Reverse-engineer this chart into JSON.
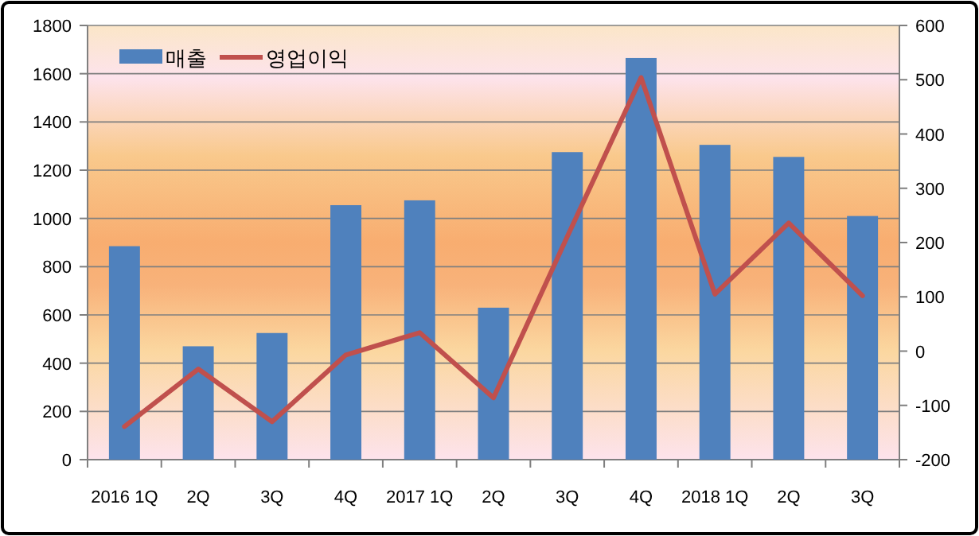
{
  "chart_data": {
    "type": "bar",
    "categories": [
      "2016 1Q",
      "2Q",
      "3Q",
      "4Q",
      "2017 1Q",
      "2Q",
      "3Q",
      "4Q",
      "2018 1Q",
      "2Q",
      "3Q"
    ],
    "series": [
      {
        "name": "매출",
        "color": "#4f81bd",
        "values": [
          885,
          470,
          525,
          1055,
          1075,
          630,
          1275,
          1665,
          1305,
          1255,
          1010
        ]
      },
      {
        "name": "영업이익",
        "type": "line",
        "axis": "y2",
        "color": "#c0504d",
        "values": [
          -139,
          -33,
          -130,
          -7,
          34,
          -86,
          211,
          504,
          105,
          236,
          102
        ]
      }
    ],
    "ylim": [
      0,
      1800
    ],
    "yticks": [
      0,
      200,
      400,
      600,
      800,
      1000,
      1200,
      1400,
      1600,
      1800
    ],
    "y2lim": [
      -200,
      600
    ],
    "y2ticks": [
      -200,
      -100,
      0,
      100,
      200,
      300,
      400,
      500,
      600
    ],
    "grid": "y",
    "legend": "top left"
  }
}
